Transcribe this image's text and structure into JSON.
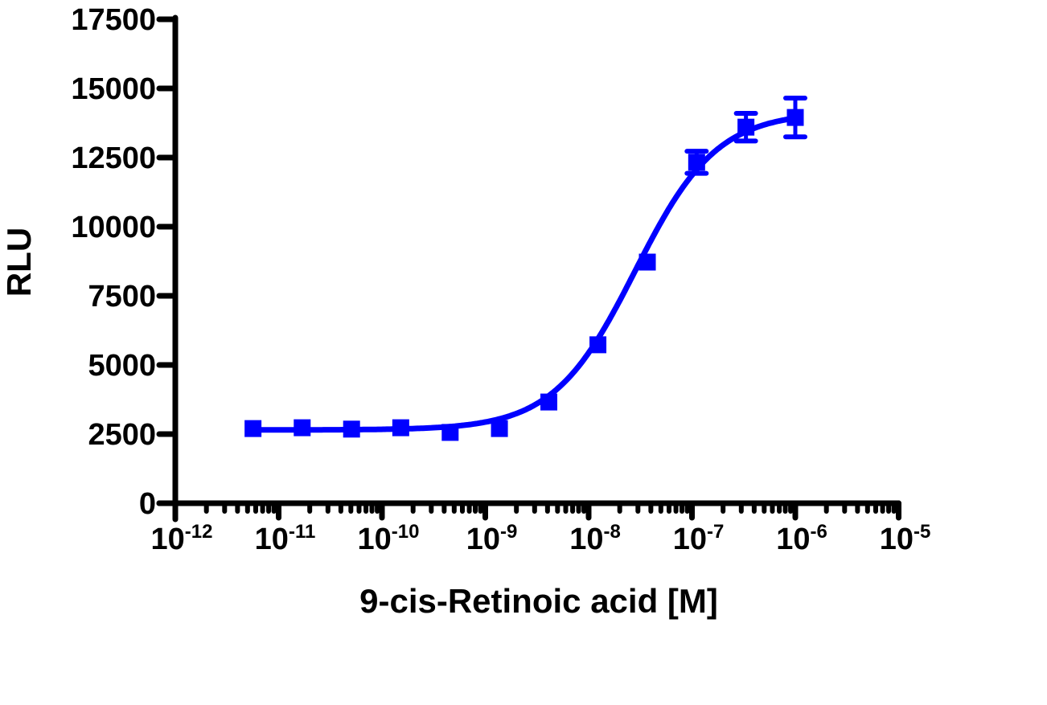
{
  "chart_data": {
    "type": "scatter",
    "title": "",
    "xlabel": "9-cis-Retinoic acid [M]",
    "ylabel": "RLU",
    "x_scale": "log",
    "xlim": [
      1e-12,
      1e-05
    ],
    "ylim": [
      0,
      17500
    ],
    "grid": false,
    "legend": null,
    "x_tick_labels": [
      {
        "base": "10",
        "exp": "-12",
        "value": 1e-12
      },
      {
        "base": "10",
        "exp": "-11",
        "value": 1e-11
      },
      {
        "base": "10",
        "exp": "-10",
        "value": 1e-10
      },
      {
        "base": "10",
        "exp": "-9",
        "value": 1e-09
      },
      {
        "base": "10",
        "exp": "-8",
        "value": 1e-08
      },
      {
        "base": "10",
        "exp": "-7",
        "value": 1e-07
      },
      {
        "base": "10",
        "exp": "-6",
        "value": 1e-06
      },
      {
        "base": "10",
        "exp": "-5",
        "value": 1e-05
      }
    ],
    "y_tick_labels": [
      "0",
      "2500",
      "5000",
      "7500",
      "10000",
      "12500",
      "15000",
      "17500"
    ],
    "y_ticks": [
      0,
      2500,
      5000,
      7500,
      10000,
      12500,
      15000,
      17500
    ],
    "series": [
      {
        "name": "9-cis-Retinoic acid",
        "color": "#0000FF",
        "marker": "square",
        "x": [
          5.65e-12,
          1.69e-11,
          5.08e-11,
          1.52e-10,
          4.57e-10,
          1.37e-09,
          4.12e-09,
          1.23e-08,
          3.7e-08,
          1.11e-07,
          3.33e-07,
          1e-06
        ],
        "y": [
          2700,
          2730,
          2680,
          2730,
          2560,
          2700,
          3660,
          5730,
          8720,
          12330,
          13600,
          13950
        ],
        "error": [
          0,
          0,
          0,
          0,
          0,
          0,
          0,
          0,
          0,
          400,
          500,
          700
        ]
      }
    ],
    "fit": {
      "model": "sigmoidal dose-response",
      "bottom": 2650,
      "top": 14150,
      "log_ec50": -7.55,
      "hill_slope": 1.1
    }
  }
}
